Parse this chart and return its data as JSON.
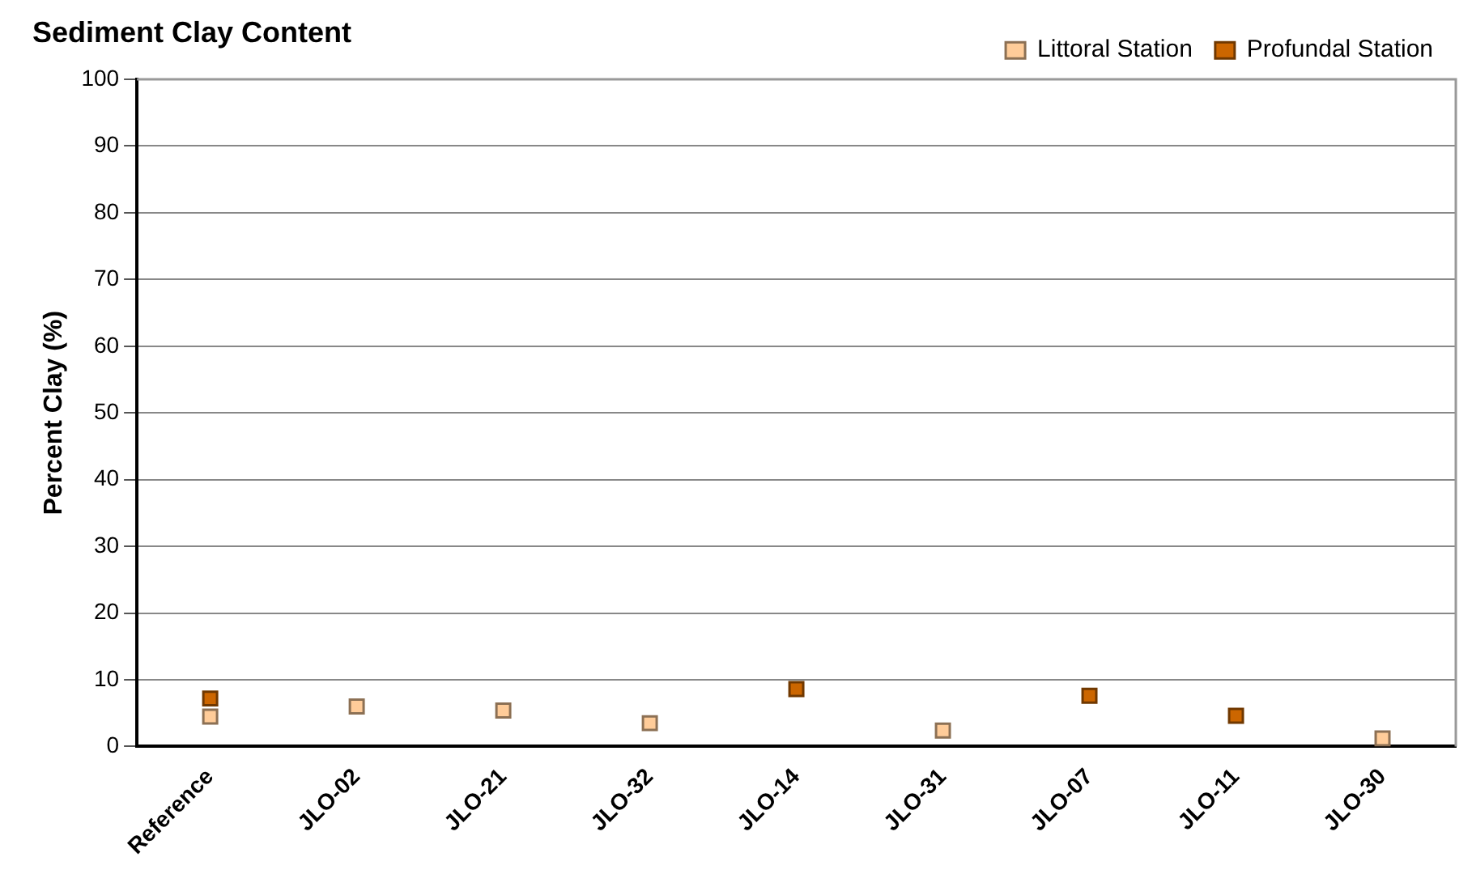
{
  "chart_data": {
    "type": "scatter",
    "title": "Sediment Clay Content",
    "ylabel": "Percent Clay (%)",
    "categories": [
      "Reference",
      "JLO-02",
      "JLO-21",
      "JLO-32",
      "JLO-14",
      "JLO-31",
      "JLO-07",
      "JLO-11",
      "JLO-30"
    ],
    "series": [
      {
        "name": "Littoral Station",
        "color": "#ffcc99",
        "values": [
          4.5,
          6.0,
          5.4,
          3.5,
          null,
          2.4,
          null,
          null,
          1.2
        ]
      },
      {
        "name": "Profundal Station",
        "color": "#cc6600",
        "values": [
          7.2,
          null,
          null,
          null,
          8.6,
          null,
          7.6,
          4.6,
          null
        ]
      }
    ],
    "ylim": [
      0,
      100
    ],
    "yticks": [
      0,
      10,
      20,
      30,
      40,
      50,
      60,
      70,
      80,
      90,
      100
    ],
    "grid": "y",
    "legend": "top right",
    "marker": "square"
  }
}
